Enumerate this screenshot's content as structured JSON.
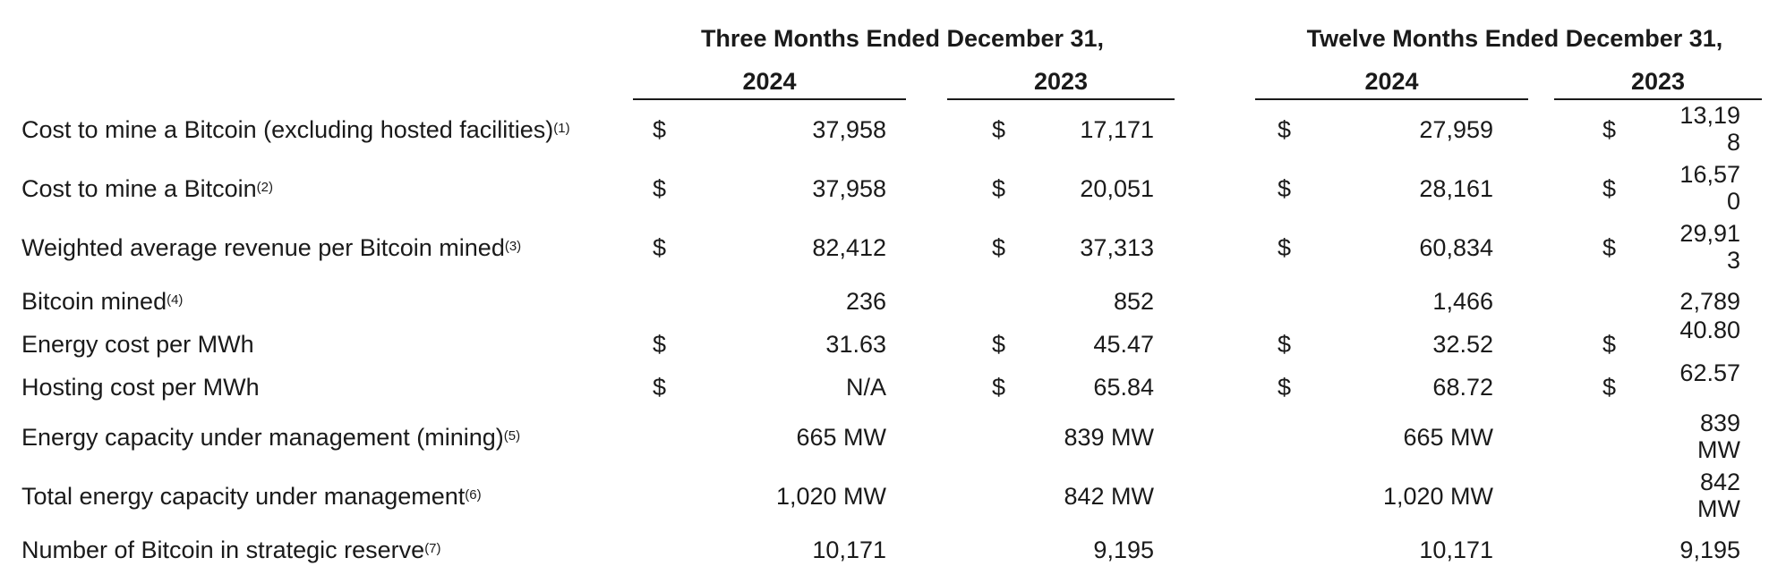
{
  "headers": {
    "three_months": "Three Months Ended December 31,",
    "twelve_months": "Twelve Months Ended December 31,",
    "years": [
      "2024",
      "2023",
      "2024",
      "2023"
    ]
  },
  "rows": [
    {
      "label": "Cost to mine a Bitcoin (excluding hosted facilities)",
      "note": "(1)",
      "dollar": [
        "$",
        "$",
        "$",
        "$"
      ],
      "values": [
        "37,958",
        "17,171",
        "27,959",
        "13,198"
      ]
    },
    {
      "label": "Cost to mine a Bitcoin",
      "note": "(2)",
      "dollar": [
        "$",
        "$",
        "$",
        "$"
      ],
      "values": [
        "37,958",
        "20,051",
        "28,161",
        "16,570"
      ]
    },
    {
      "label": "Weighted average revenue per Bitcoin mined",
      "note": "(3)",
      "dollar": [
        "$",
        "$",
        "$",
        "$"
      ],
      "values": [
        "82,412",
        "37,313",
        "60,834",
        "29,913"
      ]
    },
    {
      "label": "Bitcoin mined",
      "note": "(4)",
      "dollar": [
        "",
        "",
        "",
        ""
      ],
      "values": [
        "236",
        "852",
        "1,466",
        "2,789"
      ]
    },
    {
      "label": "Energy cost per MWh",
      "note": "",
      "dollar": [
        "$",
        "$",
        "$",
        "$"
      ],
      "values": [
        "31.63",
        "45.47",
        "32.52",
        "40.80"
      ]
    },
    {
      "label": "Hosting cost per MWh",
      "note": "",
      "dollar": [
        "$",
        "$",
        "$",
        "$"
      ],
      "values": [
        "N/A",
        "65.84",
        "68.72",
        "62.57"
      ]
    },
    {
      "label": "Energy capacity under management (mining)",
      "note": "(5)",
      "dollar": [
        "",
        "",
        "",
        ""
      ],
      "values": [
        "665 MW",
        "839 MW",
        "665 MW",
        "839 MW"
      ]
    },
    {
      "label": "Total energy capacity under management",
      "note": "(6)",
      "dollar": [
        "",
        "",
        "",
        ""
      ],
      "values": [
        "1,020 MW",
        "842 MW",
        "1,020 MW",
        "842 MW"
      ]
    },
    {
      "label": "Number of Bitcoin in strategic reserve",
      "note": "(7)",
      "dollar": [
        "",
        "",
        "",
        ""
      ],
      "values": [
        "10,171",
        "9,195",
        "10,171",
        "9,195"
      ]
    }
  ]
}
